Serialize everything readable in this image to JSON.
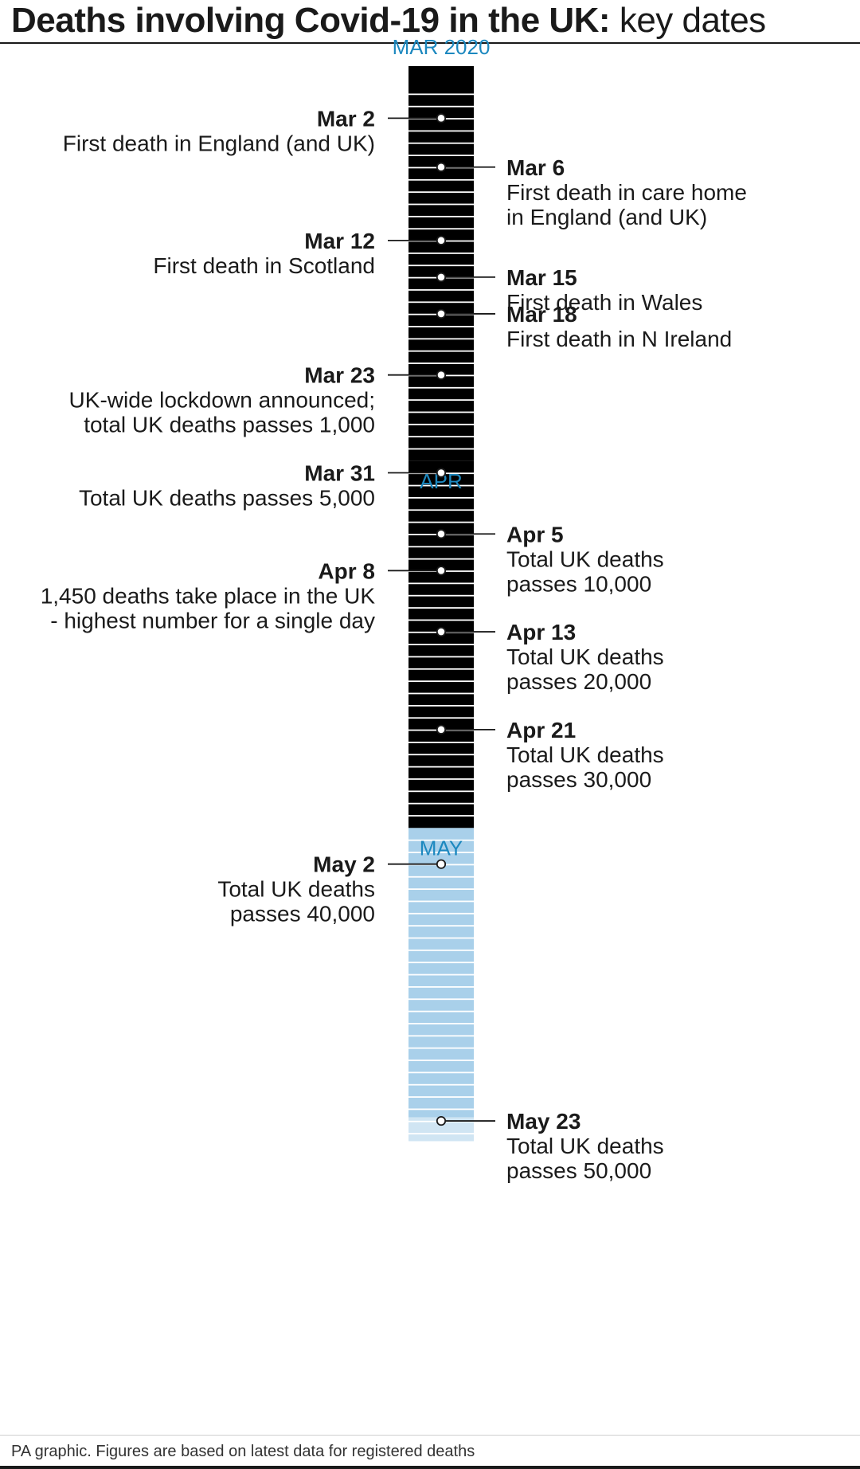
{
  "title": {
    "bold": "Deaths involving Covid-19 in the UK:",
    "light": "key dates"
  },
  "footer": "PA graphic. Figures are based on latest data for registered deaths",
  "colors": {
    "march": "#a9d0ea",
    "april": "#c6e2f3",
    "may": "#a9d0ea",
    "stripe": "#ffffff",
    "month_label": "#1c88bf",
    "connector": "#1a1a1a"
  },
  "timeline": {
    "months": [
      {
        "key": "mar",
        "label": "MAR 2020",
        "days": 31
      },
      {
        "key": "apr",
        "label": "APR",
        "days": 30
      },
      {
        "key": "may",
        "label": "MAY",
        "days": 23
      }
    ],
    "events": [
      {
        "month": "mar",
        "day": 2,
        "side": "left",
        "date": "Mar 2",
        "lines": [
          "First death in England (and UK)"
        ]
      },
      {
        "month": "mar",
        "day": 6,
        "side": "right",
        "date": "Mar 6",
        "lines": [
          "First death in care home",
          "in England (and UK)"
        ]
      },
      {
        "month": "mar",
        "day": 12,
        "side": "left",
        "date": "Mar 12",
        "lines": [
          "First death in Scotland"
        ]
      },
      {
        "month": "mar",
        "day": 15,
        "side": "right",
        "date": "Mar 15",
        "lines": [
          "First death in Wales"
        ]
      },
      {
        "month": "mar",
        "day": 18,
        "side": "right",
        "date": "Mar 18",
        "lines": [
          "First death in N Ireland"
        ]
      },
      {
        "month": "mar",
        "day": 23,
        "side": "left",
        "date": "Mar 23",
        "lines": [
          "UK-wide lockdown announced;",
          "total UK deaths passes 1,000"
        ]
      },
      {
        "month": "mar",
        "day": 31,
        "side": "left",
        "date": "Mar 31",
        "lines": [
          "Total UK deaths passes 5,000"
        ]
      },
      {
        "month": "apr",
        "day": 5,
        "side": "right",
        "date": "Apr 5",
        "lines": [
          "Total UK deaths",
          "passes 10,000"
        ]
      },
      {
        "month": "apr",
        "day": 8,
        "side": "left",
        "date": "Apr 8",
        "lines": [
          "1,450 deaths take place in the UK",
          "- highest number for a single day"
        ]
      },
      {
        "month": "apr",
        "day": 13,
        "side": "right",
        "date": "Apr 13",
        "lines": [
          "Total UK deaths",
          "passes 20,000"
        ]
      },
      {
        "month": "apr",
        "day": 21,
        "side": "right",
        "date": "Apr 21",
        "lines": [
          "Total UK deaths",
          "passes 30,000"
        ]
      },
      {
        "month": "may",
        "day": 2,
        "side": "left",
        "date": "May 2",
        "lines": [
          "Total UK deaths",
          "passes 40,000"
        ]
      },
      {
        "month": "may",
        "day": 23,
        "side": "right",
        "date": "May 23",
        "lines": [
          "Total UK deaths",
          "passes 50,000"
        ]
      }
    ]
  }
}
